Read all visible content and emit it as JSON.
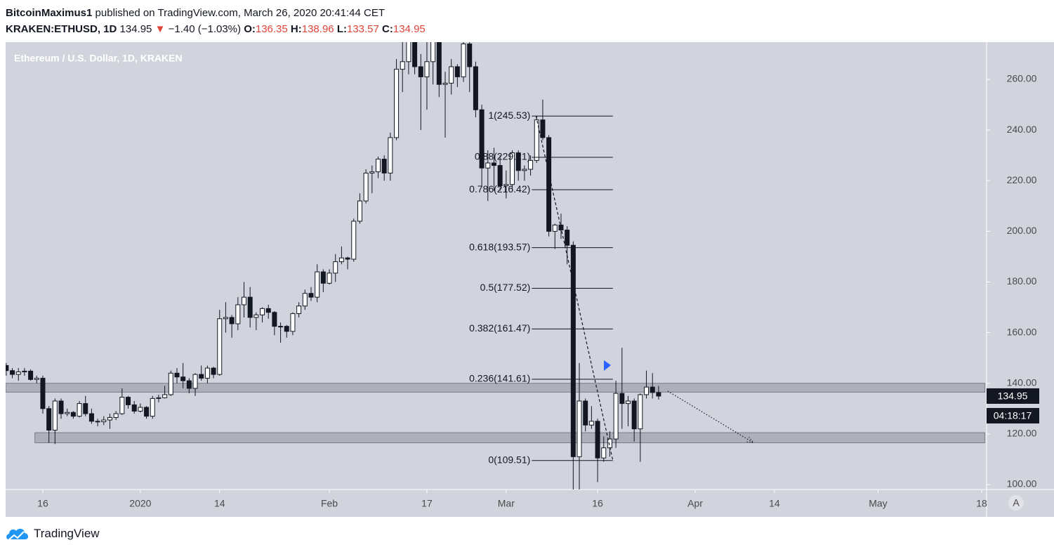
{
  "header": {
    "user": "BitcoinMaximus1",
    "published": "published on TradingView.com, March 26, 2020 20:41:44 CET",
    "symbol": "KRAKEN:ETHUSD, 1D",
    "last": 134.95,
    "change": "−1.40 (−1.03%)",
    "ohlc": [
      {
        "label": "O:",
        "value": 136.35
      },
      {
        "label": "H:",
        "value": 138.96
      },
      {
        "label": "L:",
        "value": 133.57
      },
      {
        "label": "C:",
        "value": 134.95
      }
    ]
  },
  "footer": {
    "brand": "TradingView"
  },
  "chart_data": {
    "type": "candlestick",
    "title": "Ethereum / U.S. Dollar, 1D, KRAKEN",
    "open": [
      147,
      145,
      143.5,
      144.5,
      144.8,
      141.5,
      142,
      130,
      121.5,
      133,
      128,
      128.5,
      127,
      132,
      128,
      125,
      124.8,
      125.5,
      126.5,
      128,
      134.5,
      131.5,
      129,
      130.5,
      127,
      134,
      134.3,
      135.5,
      144,
      142.5,
      141,
      138,
      143.5,
      142,
      146,
      143.5,
      165.5,
      166,
      163.5,
      171,
      174,
      166,
      167,
      169.5,
      168,
      162.5,
      162.5,
      160.5,
      167.5,
      170.5,
      175.5,
      174,
      184,
      179.5,
      183.5,
      188,
      189.5,
      189,
      204,
      212,
      223,
      223.5,
      228.5,
      223,
      237,
      264,
      267,
      284,
      265,
      261,
      267,
      282,
      258,
      258.5,
      265,
      261,
      274,
      265,
      248,
      225,
      227,
      226,
      218,
      218.5,
      231,
      224,
      224.5,
      228,
      244,
      237,
      200,
      202.5,
      200.5,
      194.5,
      111,
      133,
      123.5,
      125,
      110.5,
      114.5,
      118,
      136,
      132,
      133,
      122,
      135.5,
      138.5,
      136.35
    ],
    "high": [
      148,
      146,
      146,
      146,
      145.5,
      143,
      143,
      131,
      134,
      134,
      130,
      129,
      133,
      135,
      130,
      126,
      127,
      128,
      129,
      138,
      135,
      133,
      132,
      131,
      135,
      135.5,
      139,
      145,
      146,
      148,
      142,
      144,
      147,
      147,
      146.5,
      169,
      172,
      167,
      174,
      180,
      178,
      168,
      170,
      171,
      168.5,
      164,
      163,
      168,
      172,
      177,
      178,
      187,
      185,
      185,
      191,
      194,
      190,
      205,
      215,
      224.5,
      226,
      229.5,
      230,
      239,
      268,
      285,
      286,
      288,
      270,
      275,
      286,
      285,
      263,
      268,
      266,
      275,
      276,
      267,
      250,
      232,
      233,
      230,
      224,
      232,
      232,
      226,
      230,
      245.5,
      252,
      238,
      203,
      207,
      202,
      196,
      148,
      134,
      131,
      126,
      119,
      121,
      141,
      154,
      135,
      134,
      136,
      145,
      144,
      138.96
    ],
    "low": [
      143,
      142,
      141,
      143,
      141,
      140,
      128,
      116.5,
      116,
      126,
      127,
      126,
      126.5,
      127,
      124,
      123,
      123.5,
      122,
      125.5,
      127.5,
      130,
      128,
      128.5,
      126,
      126,
      132.5,
      134,
      135,
      140,
      138,
      136,
      135,
      141,
      140,
      142,
      143,
      160,
      158,
      161,
      166,
      162,
      161,
      164,
      165.5,
      159,
      156,
      158,
      159,
      166,
      169,
      172.5,
      172,
      176,
      179,
      180,
      187,
      185,
      188,
      203,
      211,
      215,
      221,
      220,
      220,
      236,
      255,
      262,
      262,
      240,
      248,
      258,
      253,
      237,
      254,
      257,
      259,
      255,
      245,
      218,
      212,
      216,
      216,
      213,
      216,
      220,
      220,
      222,
      227,
      236,
      198,
      193,
      197,
      187,
      90,
      96,
      121,
      122,
      101,
      109,
      111,
      114.5,
      122,
      123,
      117,
      109,
      134,
      134,
      133.57
    ],
    "close": [
      145,
      143.5,
      144.5,
      144.8,
      141.5,
      142,
      130,
      121.5,
      133,
      128,
      128.5,
      127,
      132,
      128,
      125,
      124.8,
      125.5,
      126.5,
      128,
      134.5,
      131.5,
      129,
      130.5,
      127,
      134,
      134.3,
      135.5,
      144,
      142.5,
      141,
      138,
      143.5,
      142,
      146,
      143.5,
      165.5,
      166,
      163.5,
      171,
      174,
      166,
      167,
      169.5,
      168,
      162.5,
      162.5,
      160.5,
      167.5,
      170.5,
      175.5,
      174,
      184,
      179.5,
      183.5,
      188,
      189.5,
      189,
      204,
      212,
      223,
      223.5,
      228.5,
      223,
      237,
      264,
      267,
      284,
      265,
      261,
      267,
      282,
      258,
      258.5,
      265,
      261,
      274,
      265,
      248,
      225,
      227,
      226,
      218,
      218.5,
      231,
      224,
      224.5,
      228,
      244,
      237,
      200,
      202.5,
      200.5,
      194.5,
      111,
      133,
      123.5,
      125,
      110.5,
      114.5,
      118,
      136,
      132,
      133,
      122,
      135.5,
      138.5,
      136.35,
      134.95
    ],
    "up_color": "#ffffff",
    "down_color": "#131722",
    "xlim": [
      -0.1,
      160.8
    ],
    "xticks": [
      {
        "value": 6,
        "label": "16"
      },
      {
        "value": 22,
        "label": "2020"
      },
      {
        "value": 35,
        "label": "14"
      },
      {
        "value": 53,
        "label": "Feb"
      },
      {
        "value": 69,
        "label": "17"
      },
      {
        "value": 82,
        "label": "Mar"
      },
      {
        "value": 97,
        "label": "16"
      },
      {
        "value": 113,
        "label": "Apr"
      },
      {
        "value": 126,
        "label": "14"
      },
      {
        "value": 143,
        "label": "May"
      },
      {
        "value": 160,
        "label": "18"
      }
    ],
    "ylim": [
      98.06,
      274.7
    ],
    "yticks": [
      {
        "value": 100,
        "label": "100.00"
      },
      {
        "value": 120,
        "label": "120.00"
      },
      {
        "value": 140,
        "label": "140.00"
      },
      {
        "value": 160,
        "label": "160.00"
      },
      {
        "value": 180,
        "label": "180.00"
      },
      {
        "value": 200,
        "label": "200.00"
      },
      {
        "value": 220,
        "label": "220.00"
      },
      {
        "value": 240,
        "label": "240.00"
      },
      {
        "value": 260,
        "label": "260.00"
      }
    ],
    "zones": [
      {
        "low": 136.5,
        "high": 140,
        "x": [
          -0.1,
          160.5
        ]
      },
      {
        "low": 116.5,
        "high": 120.5,
        "x": [
          4.7,
          160.5
        ]
      }
    ],
    "fib": {
      "x": [
        86.2,
        99.5
      ],
      "levels": [
        {
          "value": 245.53,
          "label": "1(245.53)"
        },
        {
          "value": 229.21,
          "label": "0.88(229.21)"
        },
        {
          "value": 216.42,
          "label": "0.786(216.42)"
        },
        {
          "value": 193.57,
          "label": "0.618(193.57)"
        },
        {
          "value": 177.52,
          "label": "0.5(177.52)"
        },
        {
          "value": 161.47,
          "label": "0.382(161.47)"
        },
        {
          "value": 141.61,
          "label": "0.236(141.61)"
        },
        {
          "value": 109.51,
          "label": "0(109.51)"
        }
      ]
    },
    "fib_trend": {
      "x": [
        86.9,
        99.5
      ],
      "y": [
        245.53,
        109.51
      ]
    },
    "projection": {
      "x": [
        108.5,
        122.5
      ],
      "y": [
        136.9,
        116.6
      ]
    },
    "last_price": 134.95,
    "countdown": "04:18:17",
    "scale_button": "A"
  }
}
